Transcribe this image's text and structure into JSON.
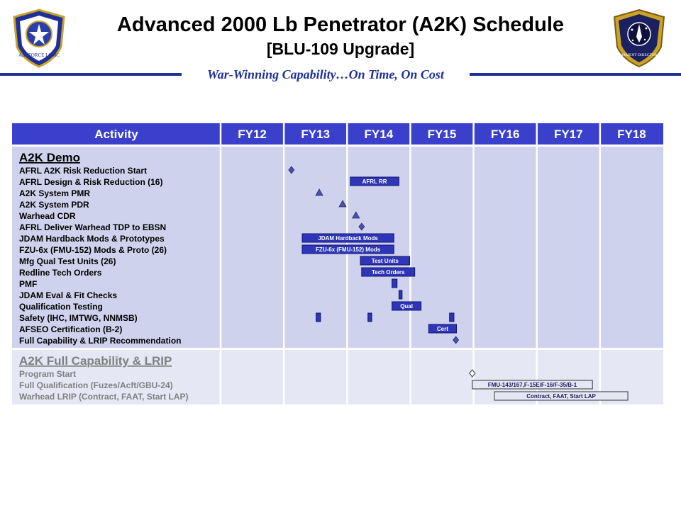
{
  "header": {
    "title": "Advanced 2000 Lb Penetrator (A2K) Schedule",
    "subtitle": "[BLU-109 Upgrade]",
    "motto": "War-Winning Capability…On Time, On Cost",
    "logo_left_text": "AIR FORCE LCMC",
    "logo_right_text": "ARMAMENT DIRECTORATE"
  },
  "colors": {
    "header_bg": "#3a3fcc",
    "section1_bg": "#cfd2ec",
    "section2_bg": "#e6e7f4",
    "bar_fill": "#2e35b8",
    "bar_fill_light": "#e6e7f4",
    "milestone": "#4a50b0",
    "gray_text": "#808080",
    "navy": "#1f2f9a"
  },
  "chart_data": {
    "type": "table",
    "columns": {
      "activity_header": "Activity",
      "years": [
        "FY12",
        "FY13",
        "FY14",
        "FY15",
        "FY16",
        "FY17",
        "FY18"
      ]
    },
    "sections": [
      {
        "title": "A2K Demo",
        "rows": [
          {
            "label": "AFRL A2K Risk Reduction Start",
            "marks": [
              {
                "kind": "diamond",
                "start": 13.12
              }
            ]
          },
          {
            "label": "AFRL Design & Risk Reduction (16)",
            "marks": [
              {
                "kind": "bar",
                "start": 14.05,
                "end": 14.82,
                "text": "AFRL RR"
              }
            ]
          },
          {
            "label": "A2K System PMR",
            "marks": [
              {
                "kind": "triangle",
                "start": 13.56
              }
            ]
          },
          {
            "label": "A2K System PDR",
            "marks": [
              {
                "kind": "triangle",
                "start": 13.93
              }
            ]
          },
          {
            "label": "Warhead CDR",
            "marks": [
              {
                "kind": "triangle",
                "start": 14.14
              }
            ]
          },
          {
            "label": "AFRL Deliver Warhead TDP to EBSN",
            "marks": [
              {
                "kind": "diamond",
                "start": 14.23
              }
            ]
          },
          {
            "label": "JDAM Hardback Mods & Prototypes",
            "marks": [
              {
                "kind": "bar",
                "start": 13.29,
                "end": 14.74,
                "text": "JDAM  Hardback Mods"
              }
            ]
          },
          {
            "label": "FZU-6x  (FMU-152)  Mods & Proto (26)",
            "marks": [
              {
                "kind": "bar",
                "start": 13.29,
                "end": 14.74,
                "text": "FZU-6x (FMU-152) Mods"
              }
            ]
          },
          {
            "label": "Mfg Qual Test Units (26)",
            "marks": [
              {
                "kind": "bar",
                "start": 14.21,
                "end": 14.99,
                "text": "Test Units"
              }
            ]
          },
          {
            "label": "Redline Tech Orders",
            "marks": [
              {
                "kind": "bar",
                "start": 14.23,
                "end": 15.07,
                "text": "Tech Orders"
              }
            ]
          },
          {
            "label": "PMF",
            "marks": [
              {
                "kind": "bar",
                "start": 14.71,
                "end": 14.79,
                "text": ""
              }
            ]
          },
          {
            "label": "JDAM Eval & Fit Checks",
            "marks": [
              {
                "kind": "bar",
                "start": 14.82,
                "end": 14.87,
                "text": ""
              }
            ]
          },
          {
            "label": "Qualification Testing",
            "marks": [
              {
                "kind": "bar",
                "start": 14.71,
                "end": 15.17,
                "text": "Qual"
              }
            ]
          },
          {
            "label": "Safety (IHC,  IMTWG,  NNMSB)",
            "marks": [
              {
                "kind": "bar",
                "start": 13.51,
                "end": 13.58,
                "text": ""
              },
              {
                "kind": "bar",
                "start": 14.33,
                "end": 14.39,
                "text": ""
              },
              {
                "kind": "bar",
                "start": 15.62,
                "end": 15.69,
                "text": ""
              }
            ]
          },
          {
            "label": "AFSEO Certification (B-2)",
            "marks": [
              {
                "kind": "bar",
                "start": 15.29,
                "end": 15.73,
                "text": "Cert"
              }
            ]
          },
          {
            "label": "Full Capability & LRIP Recommendation",
            "marks": [
              {
                "kind": "diamond",
                "start": 15.72
              }
            ]
          }
        ]
      },
      {
        "title": "A2K Full Capability & LRIP",
        "rows": [
          {
            "label": "Program Start",
            "marks": [
              {
                "kind": "diamond-open",
                "start": 15.98
              }
            ]
          },
          {
            "label": "Full Qualification (Fuzes/Acft/GBU-24)",
            "marks": [
              {
                "kind": "bar-light",
                "start": 15.98,
                "end": 17.88,
                "text": "FMU-143/167,F-15E/F-16/F-35/B-1"
              }
            ]
          },
          {
            "label": "Warhead LRIP (Contract,  FAAT,  Start LAP)",
            "marks": [
              {
                "kind": "bar-light",
                "start": 16.33,
                "end": 18.44,
                "text": "Contract, FAAT,  Start LAP"
              }
            ]
          }
        ]
      }
    ]
  }
}
